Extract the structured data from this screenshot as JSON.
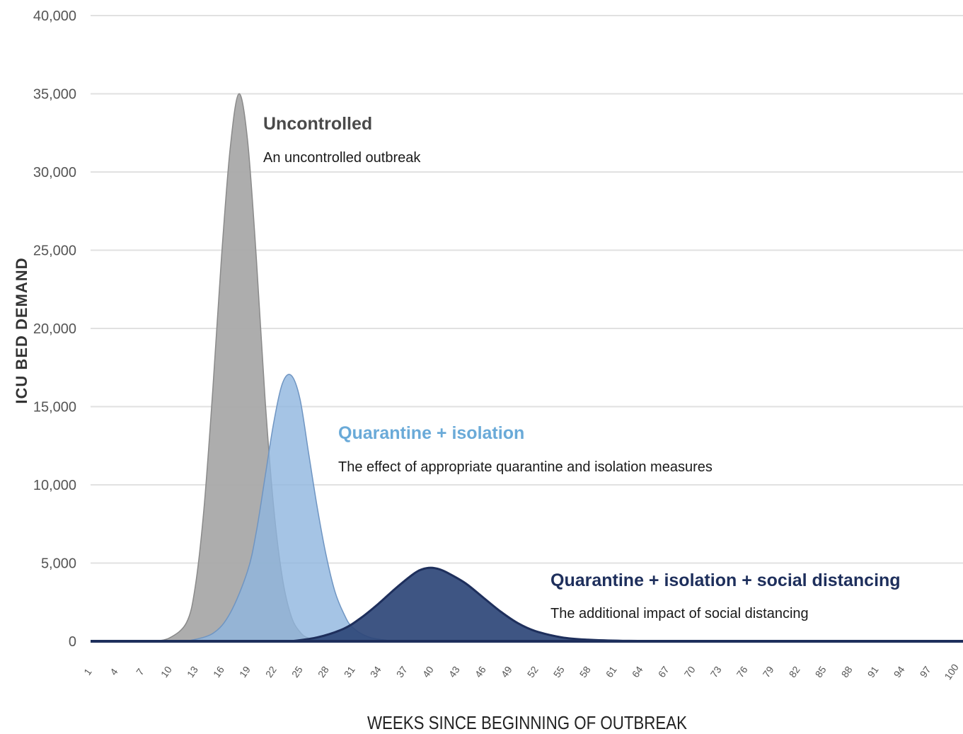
{
  "chart_data": {
    "type": "area",
    "xlabel": "WEEKS SINCE BEGINNING OF OUTBREAK",
    "ylabel": "ICU BED DEMAND",
    "ylim": [
      0,
      40000
    ],
    "yticks": [
      "0",
      "5,000",
      "10,000",
      "15,000",
      "20,000",
      "25,000",
      "30,000",
      "35,000",
      "40,000"
    ],
    "xlim": [
      1,
      101
    ],
    "xticks": [
      1,
      4,
      7,
      10,
      13,
      16,
      19,
      22,
      25,
      28,
      31,
      34,
      37,
      40,
      43,
      46,
      49,
      52,
      55,
      58,
      61,
      64,
      67,
      70,
      73,
      76,
      79,
      82,
      85,
      88,
      91,
      94,
      97,
      100
    ],
    "grid": true,
    "series": [
      {
        "name": "Uncontrolled",
        "description": "An uncontrolled outbreak",
        "color": "#a9a9a9",
        "x": [
          8,
          10,
          12,
          13,
          14,
          15,
          16,
          17,
          18,
          19,
          20,
          21,
          22,
          23,
          24,
          25,
          26,
          28
        ],
        "y": [
          0,
          200,
          1200,
          3500,
          8500,
          16000,
          24500,
          31500,
          35000,
          32000,
          24500,
          15500,
          8500,
          4000,
          1600,
          600,
          200,
          0
        ]
      },
      {
        "name": "Quarantine + isolation",
        "description": "The effect of appropriate quarantine and isolation measures",
        "color": "#8fb5de",
        "x": [
          12,
          15,
          17,
          19,
          20,
          21,
          22,
          23,
          24,
          25,
          26,
          27,
          28,
          29,
          30,
          31,
          33,
          36
        ],
        "y": [
          0,
          500,
          1800,
          4500,
          7000,
          10500,
          14000,
          16500,
          17000,
          15500,
          12000,
          8500,
          5500,
          3200,
          1800,
          900,
          250,
          0
        ]
      },
      {
        "name": "Quarantine + isolation + social distancing",
        "description": "The additional impact of social distancing",
        "color": "#2e4678",
        "x": [
          24,
          27,
          30,
          32,
          34,
          36,
          38,
          39,
          40,
          41,
          42,
          44,
          46,
          48,
          50,
          52,
          55,
          58,
          62,
          70
        ],
        "y": [
          0,
          250,
          800,
          1500,
          2400,
          3400,
          4300,
          4600,
          4700,
          4600,
          4350,
          3700,
          2800,
          1900,
          1150,
          650,
          250,
          100,
          30,
          0
        ]
      }
    ]
  }
}
